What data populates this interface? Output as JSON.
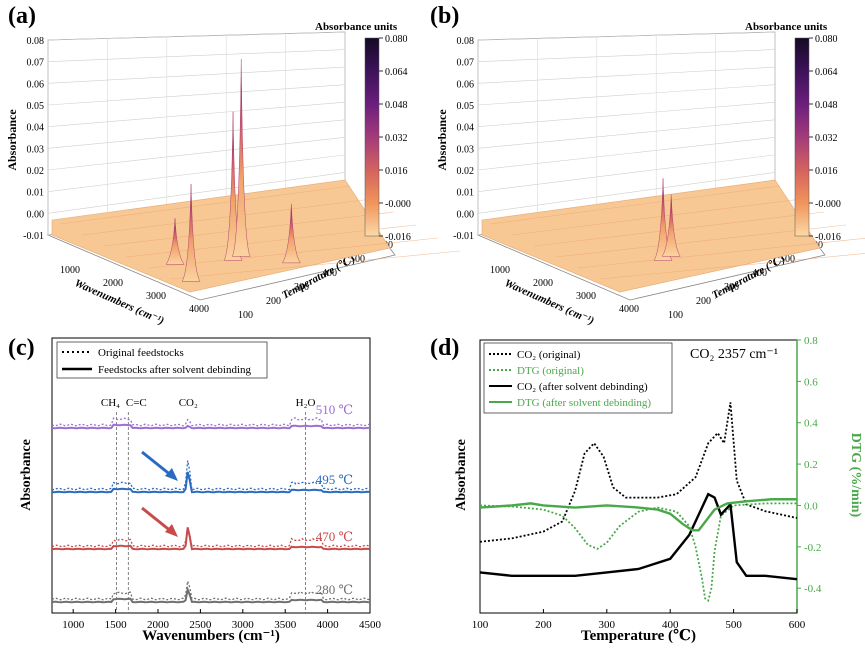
{
  "panel_labels": [
    "(a)",
    "(b)",
    "(c)",
    "(d)"
  ],
  "chart_data": [
    {
      "panel": "(a)",
      "type": "surface3d",
      "zlabel": "Absorbance",
      "xlabel": "Wavenumbers (cm⁻¹)",
      "ylabel": "Temperature (℃)",
      "z_ticks": [
        "0.08",
        "0.07",
        "0.06",
        "0.05",
        "0.04",
        "0.03",
        "0.02",
        "0.01",
        "0.00",
        "-0.01"
      ],
      "x_ticks": [
        "1000",
        "2000",
        "3000",
        "4000"
      ],
      "y_ticks": [
        "100",
        "200",
        "300",
        "400",
        "500",
        "600"
      ],
      "colorbar": {
        "title": "Absorbance units",
        "ticks": [
          "0.080",
          "0.064",
          "0.048",
          "0.032",
          "0.016",
          "-0.000",
          "-0.016"
        ],
        "colors": [
          "#150a26",
          "#3d1259",
          "#6b1e7d",
          "#a33b7a",
          "#d4625e",
          "#f0955a",
          "#fbd9a8"
        ]
      },
      "peaks": [
        {
          "wavenumber": 2357,
          "temperature": 460,
          "absorbance": 0.058
        },
        {
          "wavenumber": 2357,
          "temperature": 495,
          "absorbance": 0.077
        },
        {
          "wavenumber": 2357,
          "temperature": 280,
          "absorbance": 0.038
        },
        {
          "wavenumber": 1300,
          "temperature": 400,
          "absorbance": 0.018
        },
        {
          "wavenumber": 3700,
          "temperature": 470,
          "absorbance": 0.023
        }
      ]
    },
    {
      "panel": "(b)",
      "type": "surface3d",
      "zlabel": "Absorbance",
      "xlabel": "Wavenumbers (cm⁻¹)",
      "ylabel": "Temperature (℃)",
      "z_ticks": [
        "0.08",
        "0.07",
        "0.06",
        "0.05",
        "0.04",
        "0.03",
        "0.02",
        "0.01",
        "0.00",
        "-0.01"
      ],
      "x_ticks": [
        "1000",
        "2000",
        "3000",
        "4000"
      ],
      "y_ticks": [
        "100",
        "200",
        "300",
        "400",
        "500",
        "600"
      ],
      "colorbar": {
        "title": "Absorbance units",
        "ticks": [
          "0.080",
          "0.064",
          "0.048",
          "0.032",
          "0.016",
          "-0.000",
          "-0.016"
        ],
        "colors": [
          "#150a26",
          "#3d1259",
          "#6b1e7d",
          "#a33b7a",
          "#d4625e",
          "#f0955a",
          "#fbd9a8"
        ]
      },
      "peaks": [
        {
          "wavenumber": 2357,
          "temperature": 460,
          "absorbance": 0.032
        },
        {
          "wavenumber": 2357,
          "temperature": 495,
          "absorbance": 0.024
        }
      ]
    },
    {
      "panel": "(c)",
      "type": "line",
      "xlabel": "Wavenumbers (cm⁻¹)",
      "ylabel": "Absorbance",
      "xlim": [
        750,
        4500
      ],
      "x_ticks": [
        "1000",
        "1500",
        "2000",
        "2500",
        "3000",
        "3500",
        "4000",
        "4500"
      ],
      "legend": [
        {
          "name": "Original feedstocks",
          "style": "dotted"
        },
        {
          "name": "Feedstocks after solvent debinding",
          "style": "solid"
        }
      ],
      "band_labels": [
        {
          "text": "CH₄",
          "x": 1510
        },
        {
          "text": "C=C",
          "x": 1650
        },
        {
          "text": "CO₂",
          "x": 2357
        },
        {
          "text": "H₂O",
          "x": 3740
        }
      ],
      "temperatures": [
        {
          "label": "510 ℃",
          "color": "#9a6fd0"
        },
        {
          "label": "495 ℃",
          "color": "#2a6bc0"
        },
        {
          "label": "470 ℃",
          "color": "#c84a4a"
        },
        {
          "label": "280 ℃",
          "color": "#707070"
        }
      ]
    },
    {
      "panel": "(d)",
      "type": "line",
      "title": "CO₂ 2357 cm⁻¹",
      "xlabel": "Temperature (℃)",
      "ylabel": "Absorbance",
      "y2label": "DTG (%/min)",
      "xlim": [
        100,
        600
      ],
      "x_ticks": [
        "100",
        "200",
        "300",
        "400",
        "500",
        "600"
      ],
      "y2lim": [
        -0.52,
        0.8
      ],
      "y2_ticks": [
        "0.8",
        "0.6",
        "0.4",
        "0.2",
        "0.0",
        "-0.2",
        "-0.4"
      ],
      "legend": [
        "CO₂ (original)",
        "DTG (original)",
        "CO₂  (after solvent debinding)",
        "DTG (after solvent debinding)"
      ],
      "series": [
        {
          "name": "CO₂ (original)",
          "style": "dotted",
          "color": "#000000",
          "x": [
            100,
            150,
            200,
            230,
            250,
            265,
            280,
            295,
            310,
            330,
            350,
            380,
            410,
            440,
            460,
            475,
            485,
            495,
            505,
            520,
            550,
            600
          ],
          "y": [
            0.18,
            0.19,
            0.21,
            0.24,
            0.33,
            0.44,
            0.47,
            0.43,
            0.34,
            0.31,
            0.31,
            0.31,
            0.32,
            0.37,
            0.47,
            0.5,
            0.47,
            0.59,
            0.36,
            0.29,
            0.27,
            0.25
          ]
        },
        {
          "name": "DTG (original)",
          "style": "dotted",
          "color": "#4aa84a",
          "x": [
            100,
            150,
            200,
            230,
            250,
            270,
            285,
            300,
            320,
            350,
            380,
            410,
            430,
            440,
            450,
            455,
            460,
            465,
            470,
            480,
            500,
            550,
            600
          ],
          "y": [
            0.0,
            -0.005,
            -0.02,
            -0.05,
            -0.11,
            -0.19,
            -0.21,
            -0.18,
            -0.1,
            -0.03,
            -0.01,
            -0.03,
            -0.1,
            -0.2,
            -0.35,
            -0.45,
            -0.46,
            -0.4,
            -0.22,
            -0.05,
            0.0,
            0.01,
            0.01
          ]
        },
        {
          "name": "CO₂  (after solvent debinding)",
          "style": "solid",
          "color": "#000000",
          "x": [
            100,
            150,
            200,
            250,
            300,
            350,
            400,
            430,
            450,
            460,
            470,
            480,
            490,
            495,
            505,
            520,
            550,
            600
          ],
          "y": [
            0.09,
            0.08,
            0.08,
            0.08,
            0.09,
            0.1,
            0.13,
            0.2,
            0.28,
            0.32,
            0.31,
            0.26,
            0.28,
            0.29,
            0.12,
            0.08,
            0.08,
            0.07
          ]
        },
        {
          "name": "DTG (after solvent debinding)",
          "style": "solid",
          "color": "#4aa84a",
          "x": [
            100,
            150,
            180,
            200,
            250,
            300,
            350,
            380,
            400,
            420,
            435,
            445,
            455,
            470,
            490,
            520,
            560,
            600
          ],
          "y": [
            -0.01,
            0.0,
            0.01,
            0.0,
            -0.01,
            0.0,
            -0.01,
            -0.02,
            -0.04,
            -0.09,
            -0.12,
            -0.12,
            -0.08,
            -0.02,
            0.01,
            0.02,
            0.03,
            0.03
          ]
        }
      ]
    }
  ]
}
